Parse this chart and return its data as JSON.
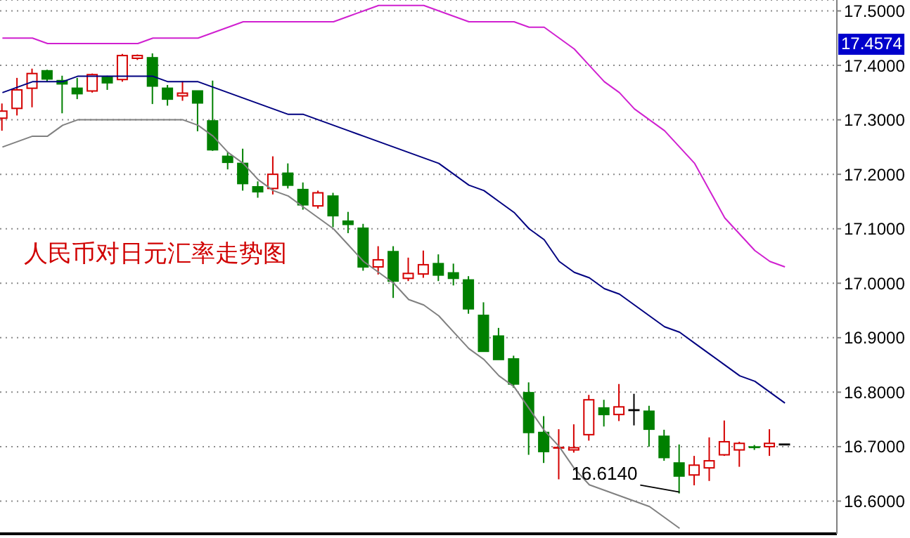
{
  "chart_data": {
    "type": "candlestick",
    "title": "人民币对日元汇率走势图",
    "categories": [
      null,
      null,
      null,
      null,
      null,
      null,
      null,
      null,
      null,
      null,
      null,
      null,
      null,
      null,
      null,
      null,
      null,
      null,
      null,
      null,
      null,
      null,
      null,
      null,
      null,
      null,
      null,
      null,
      null,
      null,
      null,
      null,
      null,
      null,
      null,
      null,
      null,
      null,
      null,
      null,
      null,
      null,
      null,
      null,
      null,
      null,
      null,
      null,
      null,
      null,
      null,
      null,
      null
    ],
    "ohlc": [
      [
        17.303,
        17.33,
        17.28,
        17.316
      ],
      [
        17.321,
        17.377,
        17.308,
        17.355
      ],
      [
        17.358,
        17.394,
        17.323,
        17.385
      ],
      [
        17.39,
        17.392,
        17.37,
        17.375
      ],
      [
        17.372,
        17.381,
        17.312,
        17.366
      ],
      [
        17.358,
        17.377,
        17.338,
        17.348
      ],
      [
        17.353,
        17.385,
        17.35,
        17.383
      ],
      [
        17.378,
        17.381,
        17.355,
        17.368
      ],
      [
        17.374,
        17.421,
        17.37,
        17.418
      ],
      [
        17.413,
        17.42,
        17.41,
        17.418
      ],
      [
        17.414,
        17.422,
        17.329,
        17.362
      ],
      [
        17.358,
        17.364,
        17.326,
        17.338
      ],
      [
        17.344,
        17.371,
        17.335,
        17.349
      ],
      [
        17.353,
        17.353,
        17.279,
        17.331
      ],
      [
        17.298,
        17.372,
        17.243,
        17.245
      ],
      [
        17.233,
        17.241,
        17.209,
        17.222
      ],
      [
        17.22,
        17.247,
        17.17,
        17.183
      ],
      [
        17.177,
        17.187,
        17.157,
        17.168
      ],
      [
        17.174,
        17.233,
        17.163,
        17.2
      ],
      [
        17.202,
        17.22,
        17.174,
        17.18
      ],
      [
        17.172,
        17.185,
        17.135,
        17.144
      ],
      [
        17.142,
        17.17,
        17.137,
        17.166
      ],
      [
        17.16,
        17.166,
        17.103,
        17.124
      ],
      [
        17.114,
        17.131,
        17.092,
        17.108
      ],
      [
        17.101,
        17.109,
        17.023,
        17.03
      ],
      [
        17.03,
        17.068,
        17.016,
        17.043
      ],
      [
        17.058,
        17.068,
        16.973,
        17.004
      ],
      [
        17.009,
        17.047,
        17.004,
        17.018
      ],
      [
        17.017,
        17.06,
        17.01,
        17.034
      ],
      [
        17.036,
        17.053,
        17.004,
        17.015
      ],
      [
        17.019,
        17.036,
        16.996,
        17.009
      ],
      [
        17.006,
        17.013,
        16.944,
        16.953
      ],
      [
        16.941,
        16.965,
        16.875,
        16.875
      ],
      [
        16.903,
        16.918,
        16.86,
        16.86
      ],
      [
        16.861,
        16.867,
        16.808,
        16.815
      ],
      [
        16.799,
        16.818,
        16.685,
        16.726
      ],
      [
        16.726,
        16.756,
        16.67,
        16.691
      ],
      [
        16.696,
        16.732,
        16.64,
        16.698
      ],
      [
        16.694,
        16.741,
        16.689,
        16.698
      ],
      [
        16.722,
        16.795,
        16.711,
        16.786
      ],
      [
        16.771,
        16.786,
        16.737,
        16.759
      ],
      [
        16.759,
        16.815,
        16.747,
        16.773
      ],
      [
        16.767,
        16.797,
        16.739,
        16.767
      ],
      [
        16.765,
        16.775,
        16.7,
        16.732
      ],
      [
        16.719,
        16.731,
        16.674,
        16.68
      ],
      [
        16.67,
        16.704,
        16.614,
        16.646
      ],
      [
        16.648,
        16.683,
        16.629,
        16.666
      ],
      [
        16.661,
        16.717,
        16.637,
        16.674
      ],
      [
        16.685,
        16.748,
        16.683,
        16.709
      ],
      [
        16.694,
        16.709,
        16.663,
        16.706
      ],
      [
        16.699,
        16.703,
        16.694,
        16.697
      ],
      [
        16.7,
        16.732,
        16.683,
        16.706
      ],
      [
        16.704,
        16.704,
        16.704,
        16.704
      ]
    ],
    "colors": [
      "#d40000",
      "#d40000",
      "#d40000",
      "#008000",
      "#008000",
      "#008000",
      "#d40000",
      "#008000",
      "#d40000",
      "#d40000",
      "#008000",
      "#008000",
      "#d40000",
      "#008000",
      "#008000",
      "#008000",
      "#008000",
      "#008000",
      "#d40000",
      "#008000",
      "#008000",
      "#d40000",
      "#008000",
      "#008000",
      "#008000",
      "#d40000",
      "#008000",
      "#d40000",
      "#d40000",
      "#008000",
      "#008000",
      "#008000",
      "#008000",
      "#008000",
      "#008000",
      "#008000",
      "#008000",
      "#d40000",
      "#d40000",
      "#d40000",
      "#008000",
      "#d40000",
      "#000000",
      "#008000",
      "#008000",
      "#008000",
      "#d40000",
      "#d40000",
      "#d40000",
      "#d40000",
      "#008000",
      "#d40000",
      "#000000"
    ],
    "series": [
      {
        "type": "line",
        "color": "#d020d0",
        "values": [
          17.45,
          17.45,
          17.45,
          17.44,
          17.44,
          17.44,
          17.44,
          17.44,
          17.44,
          17.44,
          17.45,
          17.45,
          17.45,
          17.45,
          17.46,
          17.47,
          17.48,
          17.48,
          17.48,
          17.48,
          17.48,
          17.48,
          17.48,
          17.49,
          17.5,
          17.51,
          17.51,
          17.51,
          17.51,
          17.5,
          17.49,
          17.48,
          17.48,
          17.48,
          17.48,
          17.47,
          17.47,
          17.45,
          17.43,
          17.4,
          17.37,
          17.35,
          17.32,
          17.3,
          17.28,
          17.25,
          17.22,
          17.17,
          17.12,
          17.09,
          17.06,
          17.04,
          17.03
        ]
      },
      {
        "type": "line",
        "color": "#000080",
        "values": [
          17.35,
          17.36,
          17.37,
          17.37,
          17.37,
          17.38,
          17.38,
          17.38,
          17.38,
          17.38,
          17.38,
          17.37,
          17.37,
          17.37,
          17.36,
          17.35,
          17.34,
          17.33,
          17.32,
          17.31,
          17.31,
          17.3,
          17.29,
          17.28,
          17.27,
          17.26,
          17.25,
          17.24,
          17.23,
          17.22,
          17.2,
          17.18,
          17.17,
          17.15,
          17.13,
          17.1,
          17.08,
          17.04,
          17.02,
          17.01,
          16.99,
          16.98,
          16.96,
          16.94,
          16.92,
          16.91,
          16.89,
          16.87,
          16.85,
          16.83,
          16.82,
          16.8,
          16.78
        ]
      },
      {
        "type": "line",
        "color": "#808080",
        "values": [
          17.25,
          17.26,
          17.27,
          17.27,
          17.29,
          17.3,
          17.3,
          17.3,
          17.3,
          17.3,
          17.3,
          17.3,
          17.3,
          17.29,
          17.27,
          17.24,
          17.22,
          17.19,
          17.17,
          17.16,
          17.14,
          17.12,
          17.1,
          17.07,
          17.04,
          17.02,
          17.0,
          16.97,
          16.96,
          16.94,
          16.91,
          16.88,
          16.86,
          16.83,
          16.81,
          16.77,
          16.73,
          16.7,
          16.66,
          16.63,
          16.62,
          16.61,
          16.6,
          16.59,
          16.57,
          16.55,
          null,
          null,
          null,
          null,
          null,
          null,
          null
        ]
      }
    ],
    "ylim": [
      16.54,
      17.52
    ],
    "yticks": [
      {
        "value": 16.6,
        "label": "16.6000"
      },
      {
        "value": 16.7,
        "label": "16.7000"
      },
      {
        "value": 16.8,
        "label": "16.8000"
      },
      {
        "value": 16.9,
        "label": "16.9000"
      },
      {
        "value": 17.0,
        "label": "17.0000"
      },
      {
        "value": 17.1,
        "label": "17.1000"
      },
      {
        "value": 17.2,
        "label": "17.2000"
      },
      {
        "value": 17.3,
        "label": "17.3000"
      },
      {
        "value": 17.4,
        "label": "17.4000"
      },
      {
        "value": 17.5,
        "label": "17.5000"
      }
    ],
    "grid": "y",
    "tick_labels": "y",
    "annotations": [
      {
        "text": "16.6140",
        "y": 16.614
      },
      "17.4574"
    ]
  }
}
